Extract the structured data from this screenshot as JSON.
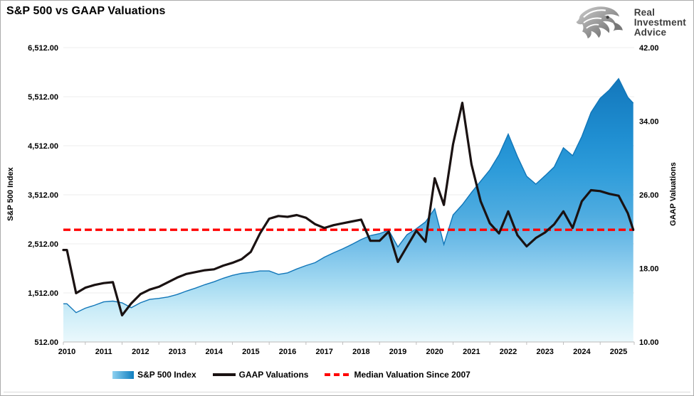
{
  "title": "S&P 500 vs GAAP Valuations",
  "logo": {
    "lines": [
      "Real",
      "Investment",
      "Advice"
    ]
  },
  "legend": {
    "items": [
      {
        "label": "S&P 500 Index",
        "swatch": "area"
      },
      {
        "label": "GAAP Valuations",
        "swatch": "line"
      },
      {
        "label": "Median Valuation Since 2007",
        "swatch": "dashed"
      }
    ]
  },
  "chart_data": {
    "type": "area",
    "subtype": "combo area + line, dual y-axes",
    "grid": "horizontal gridlines only",
    "legend_position": "bottom",
    "x_axis": {
      "tick_labels": [
        "2010",
        "2011",
        "2012",
        "2013",
        "2014",
        "2015",
        "2016",
        "2017",
        "2018",
        "2019",
        "2020",
        "2021",
        "2022",
        "2023",
        "2024",
        "2025"
      ]
    },
    "left_axis": {
      "title": "S&P 500 Index",
      "tick_labels": [
        "6,512.00",
        "5,512.00",
        "4,512.00",
        "3,512.00",
        "2,512.00",
        "1,512.00",
        "512.00"
      ],
      "tick_values": [
        6512,
        5512,
        4512,
        3512,
        2512,
        1512,
        512
      ],
      "min": 512,
      "max": 6512
    },
    "right_axis": {
      "title": "GAAP Valuations",
      "tick_labels": [
        "42.00",
        "34.00",
        "26.00",
        "18.00",
        "10.00"
      ],
      "tick_values": [
        42,
        34,
        26,
        18,
        10
      ],
      "min": 10,
      "max": 42
    },
    "x": [
      2010,
      2010.25,
      2010.5,
      2010.75,
      2011,
      2011.25,
      2011.5,
      2011.75,
      2012,
      2012.25,
      2012.5,
      2012.75,
      2013,
      2013.25,
      2013.5,
      2013.75,
      2014,
      2014.25,
      2014.5,
      2014.75,
      2015,
      2015.25,
      2015.5,
      2015.75,
      2016,
      2016.25,
      2016.5,
      2016.75,
      2017,
      2017.25,
      2017.5,
      2017.75,
      2018,
      2018.25,
      2018.5,
      2018.75,
      2019,
      2019.25,
      2019.5,
      2019.75,
      2020,
      2020.25,
      2020.5,
      2020.75,
      2021,
      2021.25,
      2021.5,
      2021.75,
      2022,
      2022.25,
      2022.5,
      2022.75,
      2023,
      2023.25,
      2023.5,
      2023.75,
      2024,
      2024.25,
      2024.5,
      2024.75,
      2025,
      2025.25,
      2025.4
    ],
    "series": [
      {
        "name": "S&P 500 Index",
        "type": "area",
        "axis": "left",
        "values": [
          1290,
          1110,
          1200,
          1260,
          1330,
          1345,
          1310,
          1210,
          1310,
          1380,
          1400,
          1430,
          1480,
          1550,
          1610,
          1680,
          1740,
          1810,
          1870,
          1910,
          1930,
          1960,
          1960,
          1890,
          1920,
          2000,
          2070,
          2130,
          2240,
          2330,
          2410,
          2500,
          2600,
          2680,
          2720,
          2790,
          2450,
          2700,
          2820,
          2960,
          3230,
          2500,
          3100,
          3310,
          3560,
          3790,
          4020,
          4330,
          4750,
          4290,
          3890,
          3730,
          3900,
          4080,
          4470,
          4310,
          4700,
          5190,
          5480,
          5650,
          5880,
          5500,
          5380
        ]
      },
      {
        "name": "GAAP Valuations",
        "type": "line",
        "axis": "right",
        "values": [
          20.0,
          15.3,
          15.9,
          16.2,
          16.4,
          16.5,
          12.9,
          14.2,
          15.2,
          15.7,
          16.0,
          16.5,
          17.0,
          17.4,
          17.6,
          17.8,
          17.9,
          18.3,
          18.6,
          19.0,
          19.8,
          21.8,
          23.4,
          23.7,
          23.6,
          23.8,
          23.5,
          22.8,
          22.4,
          22.7,
          22.9,
          23.1,
          23.3,
          21.0,
          21.0,
          22.0,
          18.7,
          20.4,
          22.1,
          20.9,
          27.8,
          24.9,
          31.5,
          36.0,
          29.3,
          25.3,
          22.9,
          21.8,
          24.2,
          21.6,
          20.4,
          21.3,
          21.9,
          22.8,
          24.2,
          22.4,
          25.3,
          26.5,
          26.4,
          26.1,
          25.9,
          24.0,
          22.2
        ]
      },
      {
        "name": "Median Valuation Since 2007",
        "type": "hline-dashed",
        "axis": "right",
        "value": 22.2
      }
    ],
    "colors": {
      "area_gradient": [
        [
          0,
          "#0D6CB0"
        ],
        [
          0.11,
          "#1478BC"
        ],
        [
          0.3,
          "#1F8ED1"
        ],
        [
          0.42,
          "#2E9CDA"
        ],
        [
          0.57,
          "#4FACE0"
        ],
        [
          0.69,
          "#7AC2EA"
        ],
        [
          0.81,
          "#A8DCF2"
        ],
        [
          0.9,
          "#CDEDF8"
        ],
        [
          1,
          "#EAF8FC"
        ]
      ],
      "area_edge": "#1176B8",
      "gaap_line": "#1A1212",
      "median_line": "#FF0000",
      "grid_line": "#ECECEC",
      "axis_line": "#C6C6C6",
      "tick_mark": "#BFBFBF"
    }
  }
}
